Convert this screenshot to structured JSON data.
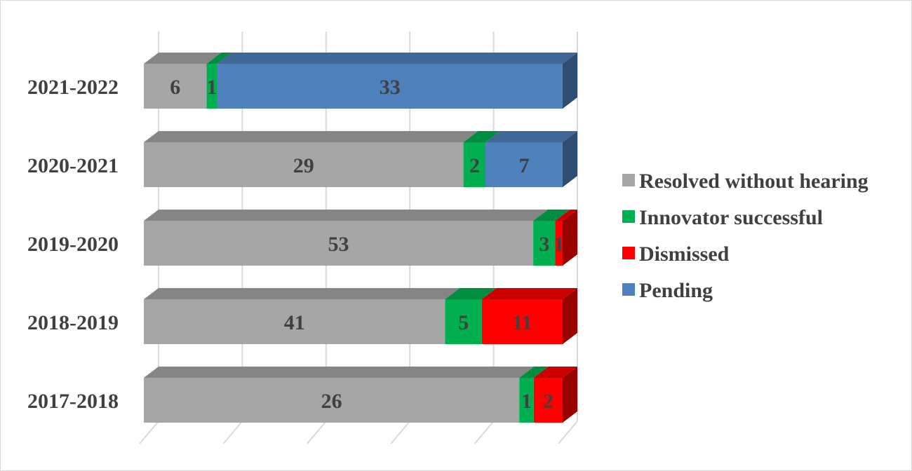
{
  "chart_data": {
    "type": "bar",
    "orientation": "horizontal",
    "stacked": true,
    "three_d": true,
    "categories": [
      "2021-2022",
      "2020-2021",
      "2019-2020",
      "2018-2019",
      "2017-2018"
    ],
    "series": [
      {
        "name": "Resolved without hearing",
        "color": "#a6a6a6",
        "values": [
          6,
          29,
          53,
          41,
          26
        ]
      },
      {
        "name": "Innovator successful",
        "color": "#00b050",
        "values": [
          1,
          2,
          3,
          5,
          1
        ]
      },
      {
        "name": "Dismissed",
        "color": "#ff0000",
        "values": [
          0,
          0,
          1,
          11,
          2
        ]
      },
      {
        "name": "Pending",
        "color": "#4f81bd",
        "values": [
          33,
          7,
          0,
          0,
          0
        ]
      }
    ],
    "axis": {
      "type": "percent-stacked",
      "xlim": [
        0,
        100
      ]
    },
    "grid": true,
    "legend": "right"
  }
}
